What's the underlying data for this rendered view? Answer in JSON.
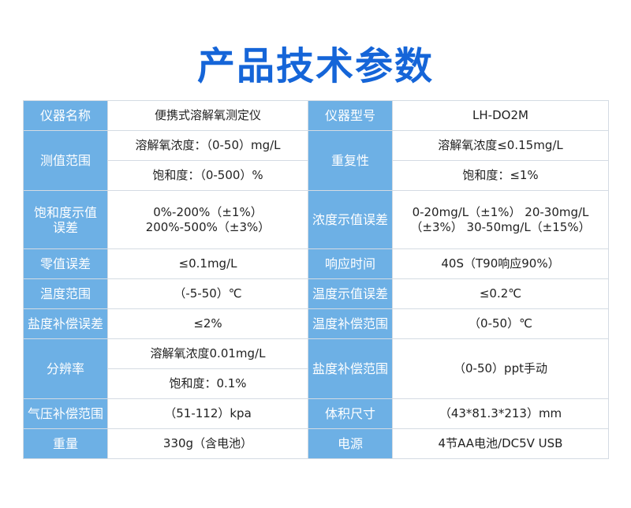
{
  "page": {
    "title": "产品技术参数"
  },
  "specs": {
    "instrument_name": {
      "label": "仪器名称",
      "value": "便携式溶解氧测定仪"
    },
    "instrument_model": {
      "label": "仪器型号",
      "value": "LH-DO2M"
    },
    "measuring_range": {
      "label": "测值范围",
      "value_do": "溶解氧浓度：（0-50）mg/L",
      "value_sat": "饱和度：（0-500）%"
    },
    "repeatability": {
      "label": "重复性",
      "value_do": "溶解氧浓度≤0.15mg/L",
      "value_sat": "饱和度：≤1%"
    },
    "saturation_error": {
      "label_line1": "饱和度示值",
      "label_line2": "误差",
      "value_line1": "0%-200%（±1%）",
      "value_line2": "200%-500%（±3%）"
    },
    "concentration_error": {
      "label": "浓度示值误差",
      "value_line1": "0-20mg/L（±1%） 20-30mg/L",
      "value_line2": "（±3%） 30-50mg/L（±15%）"
    },
    "zero_error": {
      "label": "零值误差",
      "value": "≤0.1mg/L"
    },
    "response_time": {
      "label": "响应时间",
      "value": "40S（T90响应90%）"
    },
    "temp_range": {
      "label": "温度范围",
      "value": "（-5-50）℃"
    },
    "temp_error": {
      "label": "温度示值误差",
      "value": "≤0.2℃"
    },
    "salinity_comp_error": {
      "label": "盐度补偿误差",
      "value": "≤2%"
    },
    "temp_comp_range": {
      "label": "温度补偿范围",
      "value": "（0-50）℃"
    },
    "resolution": {
      "label": "分辨率",
      "value_do": "溶解氧浓度0.01mg/L",
      "value_sat": "饱和度：0.1%"
    },
    "salinity_comp_range": {
      "label": "盐度补偿范围",
      "value": "（0-50）ppt手动"
    },
    "pressure_comp_range": {
      "label": "气压补偿范围",
      "value": "（51-112）kpa"
    },
    "volume": {
      "label": "体积尺寸",
      "value": "（43*81.3*213）mm"
    },
    "weight": {
      "label": "重量",
      "value": "330g（含电池）"
    },
    "power": {
      "label": "电源",
      "value": "4节AA电池/DC5V USB"
    }
  },
  "colors": {
    "title": "#1565d8",
    "label_bg": "#6db0e5",
    "label_text": "#ffffff",
    "border": "#d4dbe3"
  }
}
